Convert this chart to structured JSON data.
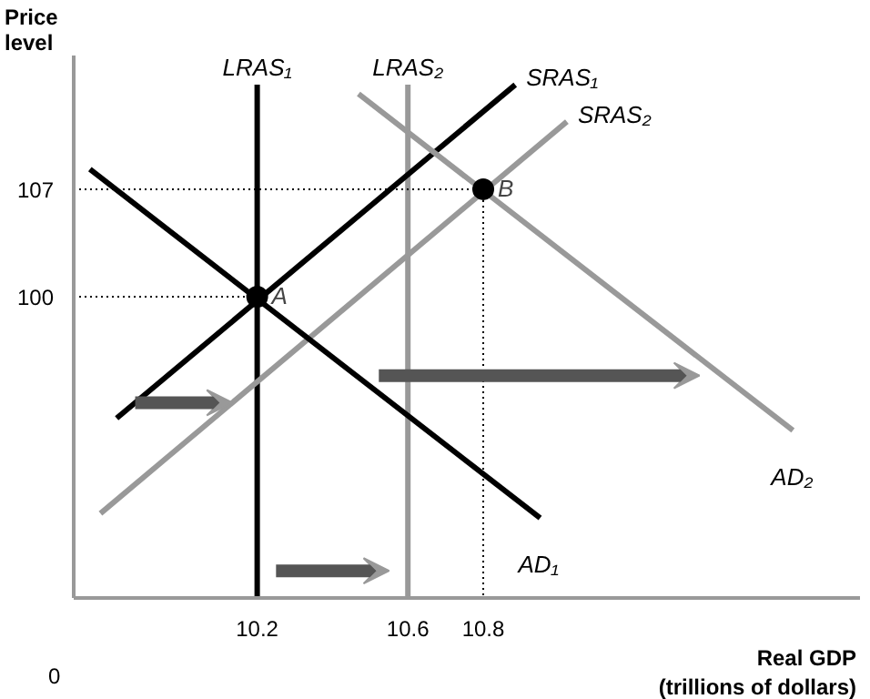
{
  "chart_data": {
    "type": "line",
    "xlabel": "Real GDP\n(trillions of dollars)",
    "ylabel": "Price\nlevel",
    "xlim": [
      9.713,
      11.8
    ],
    "ylim": [
      80.4,
      115.7
    ],
    "xticks": [
      10.2,
      10.6,
      10.8
    ],
    "yticks": [
      100,
      107
    ],
    "grid": false,
    "marker": "none",
    "series": [
      {
        "name": "LRAS₁",
        "color": "#000000",
        "x": [
          10.2,
          10.2
        ],
        "values": [
          80.4,
          113.8
        ]
      },
      {
        "name": "LRAS₂",
        "color": "#999999",
        "x": [
          10.6,
          10.6
        ],
        "values": [
          80.4,
          113.8
        ]
      },
      {
        "name": "SRAS₁",
        "color": "#000000",
        "x": [
          9.827,
          10.885
        ],
        "values": [
          92.1,
          113.8
        ]
      },
      {
        "name": "SRAS₂",
        "color": "#999999",
        "x": [
          9.784,
          11.022
        ],
        "values": [
          85.9,
          111.4
        ]
      },
      {
        "name": "AD₁",
        "color": "#000000",
        "x": [
          9.756,
          10.951
        ],
        "values": [
          108.3,
          85.6
        ]
      },
      {
        "name": "AD₂",
        "color": "#999999",
        "x": [
          10.469,
          11.622
        ],
        "values": [
          113.2,
          91.3
        ]
      },
      {
        "color": "#000000",
        "line_style": "dotted",
        "x": [
          9.713,
          10.8
        ],
        "values": [
          107,
          107
        ]
      },
      {
        "color": "#000000",
        "line_style": "dotted",
        "x": [
          9.713,
          10.2
        ],
        "values": [
          100,
          100
        ]
      },
      {
        "color": "#000000",
        "line_style": "dotted",
        "x": [
          10.8,
          10.8
        ],
        "values": [
          107,
          80.4
        ]
      },
      {
        "type": "scatter",
        "marker": "circle",
        "color": "#000000",
        "x": [
          10.2,
          10.8
        ],
        "values": [
          100,
          107
        ]
      }
    ],
    "annotations": [
      {
        "text": "A",
        "x": 10.2,
        "y": 100
      },
      {
        "text": "B",
        "x": 10.8,
        "y": 107
      },
      "0"
    ]
  }
}
